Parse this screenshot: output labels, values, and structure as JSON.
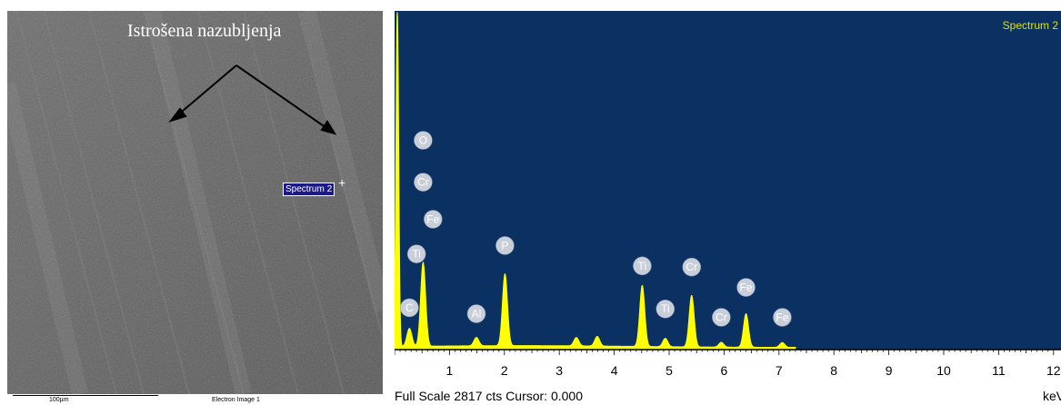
{
  "sem_image": {
    "annotation": "Istrošena nazubljenja",
    "spectrum_label": "Spectrum 2",
    "scale_bar": "100µm",
    "image_label": "Electron Image 1"
  },
  "colors": {
    "plot_bg": "#0b3163",
    "peak_fill": "#ffff00",
    "title_color": "#d8e020",
    "bubble": "#c9cfd8"
  },
  "chart_data": {
    "type": "area",
    "title": "Spectrum 2",
    "xlabel": "keV",
    "footer": "Full Scale 2817 cts Cursor: 0.000",
    "xlim": [
      0,
      12
    ],
    "ylim": [
      0,
      2817
    ],
    "xticks": [
      "1",
      "2",
      "3",
      "4",
      "5",
      "6",
      "7",
      "8",
      "9",
      "10",
      "11",
      "12"
    ],
    "peaks": [
      {
        "x": 0.05,
        "y": 2817
      },
      {
        "x": 0.27,
        "y": 150
      },
      {
        "x": 0.52,
        "y": 700
      },
      {
        "x": 1.49,
        "y": 70
      },
      {
        "x": 2.01,
        "y": 600
      },
      {
        "x": 3.31,
        "y": 70
      },
      {
        "x": 3.69,
        "y": 80
      },
      {
        "x": 4.51,
        "y": 510
      },
      {
        "x": 4.93,
        "y": 70
      },
      {
        "x": 5.41,
        "y": 430
      },
      {
        "x": 5.95,
        "y": 40
      },
      {
        "x": 6.4,
        "y": 280
      },
      {
        "x": 7.06,
        "y": 40
      }
    ],
    "peak_labels": [
      {
        "text": "O",
        "x": 0.52,
        "y": 1750
      },
      {
        "text": "Cr",
        "x": 0.52,
        "y": 1400
      },
      {
        "text": "Fe",
        "x": 0.7,
        "y": 1090
      },
      {
        "text": "Ti",
        "x": 0.4,
        "y": 800
      },
      {
        "text": "C",
        "x": 0.27,
        "y": 350
      },
      {
        "text": "Al",
        "x": 1.49,
        "y": 300
      },
      {
        "text": "P",
        "x": 2.01,
        "y": 870
      },
      {
        "text": "Ti",
        "x": 4.51,
        "y": 700
      },
      {
        "text": "Ti",
        "x": 4.93,
        "y": 340
      },
      {
        "text": "Cr",
        "x": 5.41,
        "y": 690
      },
      {
        "text": "Cr",
        "x": 5.95,
        "y": 270
      },
      {
        "text": "Fe",
        "x": 6.4,
        "y": 520
      },
      {
        "text": "Fe",
        "x": 7.06,
        "y": 270
      }
    ]
  }
}
